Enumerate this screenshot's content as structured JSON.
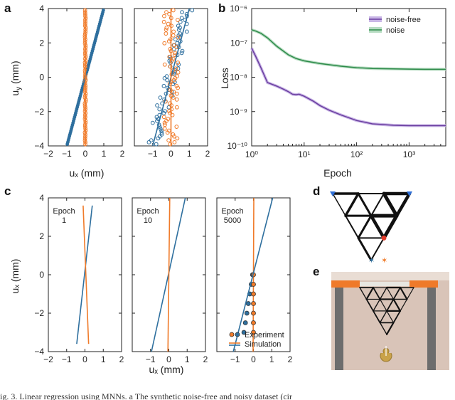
{
  "figure": {
    "panel_labels": [
      "a",
      "b",
      "c",
      "d",
      "e"
    ],
    "caption": "ig. 3. Linear regression using MNNs. a The synthetic noise-free and noisy dataset (cir",
    "colors": {
      "blue": "#2e6f9e",
      "orange": "#f07b2a",
      "purple": "#6b3fa0",
      "green": "#2e8b4a",
      "purple_band": "#c9b6e6",
      "green_band": "#b7dcc2"
    }
  },
  "chart_data": [
    {
      "id": "a1",
      "type": "scatter",
      "xlabel": "uₓ (mm)",
      "ylabel": "u_y (mm)",
      "xlim": [
        -2,
        2
      ],
      "ylim": [
        -4,
        4
      ],
      "xticks": [
        "−2",
        "−1",
        "0",
        "1",
        "2"
      ],
      "yticks": [
        "4",
        "2",
        "0",
        "−2",
        "−4"
      ],
      "series": [
        {
          "color": "blue",
          "fit": {
            "slope": 4.0,
            "intercept": 0
          }
        },
        {
          "color": "orange",
          "fit": {
            "slope": "vertical",
            "x": 0
          }
        }
      ]
    },
    {
      "id": "a2",
      "type": "scatter",
      "xlabel": "uₓ (mm)",
      "xlim": [
        -2,
        2
      ],
      "ylim": [
        -4,
        4
      ],
      "xticks": [
        "−1",
        "0",
        "1",
        "2"
      ],
      "series": [
        {
          "color": "blue",
          "fit": {
            "slope": 4.0,
            "intercept": 0
          },
          "noise": true
        },
        {
          "color": "orange",
          "fit": {
            "slope": "vertical",
            "x": 0
          },
          "noise": true
        }
      ]
    },
    {
      "id": "b",
      "type": "line",
      "xlabel": "Epoch",
      "ylabel": "Loss",
      "xscale": "log",
      "yscale": "log",
      "xlim": [
        1,
        5000
      ],
      "ylim": [
        1e-10,
        1e-06
      ],
      "xticks": [
        "10⁰",
        "10¹",
        "10²",
        "10³"
      ],
      "yticks": [
        "10⁻⁶",
        "10⁻⁷",
        "10⁻⁸",
        "10⁻⁹",
        "10⁻¹⁰"
      ],
      "legend": "top-right",
      "series": [
        {
          "name": "noise-free",
          "color": "purple",
          "x": [
            1,
            1.2,
            1.5,
            2,
            3,
            4,
            5,
            6,
            7,
            8,
            10,
            15,
            20,
            30,
            50,
            100,
            200,
            500,
            1000,
            2000,
            5000
          ],
          "y": [
            7e-08,
            4e-08,
            1.9e-08,
            7e-09,
            5.5e-09,
            4.5e-09,
            3.8e-09,
            3.2e-09,
            3.1e-09,
            3.2e-09,
            2.8e-09,
            2e-09,
            1.5e-09,
            1.1e-09,
            8e-10,
            5.5e-10,
            4.4e-10,
            4e-10,
            3.9e-10,
            3.9e-10,
            3.9e-10
          ]
        },
        {
          "name": "noise",
          "color": "green",
          "x": [
            1,
            1.2,
            1.5,
            2,
            3,
            5,
            7,
            10,
            20,
            50,
            100,
            200,
            500,
            1000,
            2000,
            5000
          ],
          "y": [
            2.4e-07,
            2.2e-07,
            1.9e-07,
            1.4e-07,
            8e-08,
            4.5e-08,
            3.5e-08,
            3e-08,
            2.5e-08,
            2.1e-08,
            1.9e-08,
            1.8e-08,
            1.75e-08,
            1.72e-08,
            1.7e-08,
            1.7e-08
          ]
        }
      ]
    },
    {
      "id": "c1",
      "type": "line",
      "annotation": "Epoch\n1",
      "ylabel": "uₓ (mm)",
      "xlim": [
        -2,
        2
      ],
      "ylim": [
        -4,
        4
      ],
      "xticks": [
        "−2",
        "−1",
        "0",
        "1",
        "2"
      ],
      "yticks": [
        "4",
        "2",
        "0",
        "−2",
        "−4"
      ],
      "series": [
        {
          "color": "blue",
          "x": [
            -0.45,
            0.4
          ],
          "y": [
            -3.6,
            3.6
          ]
        },
        {
          "color": "orange",
          "x": [
            -0.1,
            0.2
          ],
          "y": [
            3.6,
            -3.6
          ]
        }
      ]
    },
    {
      "id": "c2",
      "type": "line",
      "annotation": "Epoch\n10",
      "xlabel": "uₓ (mm)",
      "xlim": [
        -2,
        2
      ],
      "ylim": [
        -4,
        4
      ],
      "xticks": [
        "−1",
        "0",
        "1",
        "2"
      ],
      "series": [
        {
          "color": "blue",
          "x": [
            -0.95,
            0.9
          ],
          "y": [
            -4,
            4
          ]
        },
        {
          "color": "orange",
          "x": [
            -0.05,
            0.05
          ],
          "y": [
            -4,
            4
          ]
        }
      ]
    },
    {
      "id": "c3",
      "type": "line",
      "annotation": "Epoch\n5000",
      "xlim": [
        -2,
        2
      ],
      "ylim": [
        -4,
        4
      ],
      "xticks": [
        "−1",
        "0",
        "1",
        "2"
      ],
      "legend": "bottom-right",
      "series": [
        {
          "name": "Experiment",
          "color": "blue",
          "points_x": [
            -0.05,
            -0.12,
            -0.2,
            -0.28,
            -0.36,
            -0.44,
            -0.52
          ],
          "points_y": [
            0,
            -0.5,
            -1,
            -1.5,
            -2,
            -2.5,
            -3
          ]
        },
        {
          "name": "Simulation",
          "color": "orange",
          "x": [
            -0.02,
            0.02
          ],
          "y": [
            -4,
            4
          ],
          "points_x": [
            0,
            0,
            0,
            0,
            0,
            0,
            0
          ],
          "points_y": [
            0,
            -0.5,
            -1,
            -1.5,
            -2,
            -2.5,
            -3
          ]
        },
        {
          "color": "blue",
          "x": [
            -1.1,
            1.05
          ],
          "y": [
            -4,
            4
          ]
        }
      ]
    }
  ]
}
